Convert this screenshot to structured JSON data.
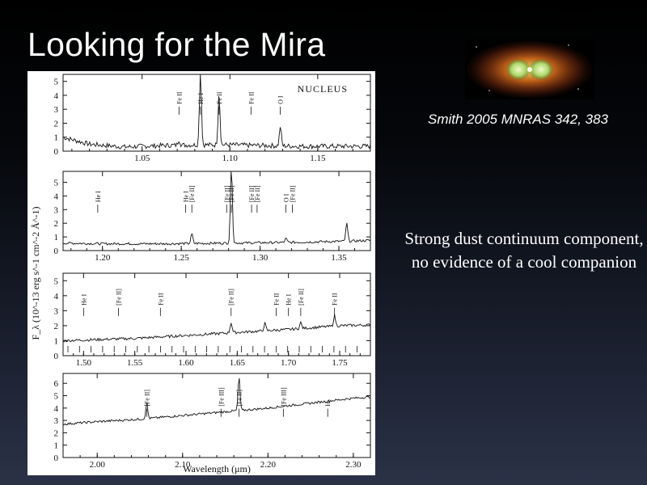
{
  "slide": {
    "title": "Looking for the Mira",
    "citation": "Smith 2005 MNRAS 342, 383",
    "note": "Strong dust continuum component, no evidence of a cool companion",
    "text_color": "#ffffff"
  },
  "chart_data": {
    "type": "line",
    "ylabel": "F_λ (10^-13 erg s^-1 cm^-2 Å^-1)",
    "xlabel": "Wavelength (μm)",
    "panels": [
      {
        "xlim": [
          1.005,
          1.18
        ],
        "ylim": [
          0,
          5.5
        ],
        "xticks": [
          "1.05",
          "1.10",
          "1.15"
        ],
        "xtick_values": [
          1.05,
          1.1,
          1.15
        ],
        "yticks": [
          "0",
          "1",
          "2",
          "3",
          "4",
          "5"
        ],
        "label": "NUCLEUS",
        "series": [
          {
            "x": [
              1.005,
              1.02,
              1.04,
              1.06,
              1.08,
              1.1,
              1.12,
              1.14,
              1.16,
              1.18
            ],
            "y": [
              1.0,
              0.5,
              0.3,
              0.4,
              0.45,
              0.45,
              0.4,
              0.35,
              0.35,
              0.35
            ]
          }
        ],
        "emission": [
          [
            1.071,
            0.4
          ],
          [
            1.0832,
            5.5
          ],
          [
            1.0938,
            3.7
          ],
          [
            1.1287,
            1.4
          ]
        ],
        "line_labels": [
          "Fe II",
          "He I",
          "Fe II",
          "Fe II",
          "O I"
        ],
        "line_positions": [
          1.071,
          1.0832,
          1.0938,
          1.112,
          1.1287
        ]
      },
      {
        "xlim": [
          1.175,
          1.37
        ],
        "ylim": [
          0,
          5.8
        ],
        "xticks": [
          "1.20",
          "1.25",
          "1.30",
          "1.35"
        ],
        "xtick_values": [
          1.2,
          1.25,
          1.3,
          1.35
        ],
        "yticks": [
          "0",
          "1",
          "2",
          "3",
          "4",
          "5"
        ],
        "series": [
          {
            "x": [
              1.175,
              1.2,
              1.24,
              1.28,
              1.32,
              1.36,
              1.37
            ],
            "y": [
              0.55,
              0.5,
              0.5,
              0.55,
              0.6,
              0.7,
              0.75
            ]
          }
        ],
        "emission": [
          [
            1.2567,
            0.7
          ],
          [
            1.2818,
            5.8
          ],
          [
            1.3164,
            0.3
          ],
          [
            1.355,
            1.3
          ]
        ],
        "line_labels": [
          "He I",
          "He I",
          "[Fe II]",
          "[Fe II]",
          "[Fe II]",
          "[Fe II]",
          "[Fe II]",
          "O I",
          "[Fe II]"
        ],
        "line_positions": [
          1.197,
          1.2527,
          1.2567,
          1.2788,
          1.2818,
          1.2946,
          1.2981,
          1.3164,
          1.3205
        ]
      },
      {
        "xlim": [
          1.48,
          1.78
        ],
        "ylim": [
          0,
          5.5
        ],
        "xticks": [
          "1.50",
          "1.55",
          "1.60",
          "1.65",
          "1.70",
          "1.75"
        ],
        "xtick_values": [
          1.5,
          1.55,
          1.6,
          1.65,
          1.7,
          1.75
        ],
        "yticks": [
          "0",
          "1",
          "2",
          "3",
          "4",
          "5"
        ],
        "series": [
          {
            "x": [
              1.48,
              1.55,
              1.6,
              1.65,
              1.7,
              1.75,
              1.78
            ],
            "y": [
              1.0,
              1.15,
              1.35,
              1.55,
              1.75,
              2.0,
              2.05
            ]
          }
        ],
        "emission": [
          [
            1.644,
            0.7
          ],
          [
            1.677,
            0.5
          ],
          [
            1.712,
            0.4
          ],
          [
            1.745,
            0.7
          ]
        ],
        "line_labels": [
          "He I",
          "[Fe II]",
          "Fe II",
          "[Fe II]",
          "Fe II",
          "He I",
          "[Fe II]",
          "Fe II"
        ],
        "line_positions": [
          1.5,
          1.534,
          1.575,
          1.644,
          1.688,
          1.7,
          1.712,
          1.745
        ]
      },
      {
        "xlim": [
          1.96,
          2.32
        ],
        "ylim": [
          0,
          6.8
        ],
        "xticks": [
          "2.00",
          "2.10",
          "2.20",
          "2.30"
        ],
        "xtick_values": [
          2.0,
          2.1,
          2.2,
          2.3
        ],
        "yticks": [
          "0",
          "1",
          "2",
          "3",
          "4",
          "5",
          "6"
        ],
        "series": [
          {
            "x": [
              1.96,
              2.0,
              2.05,
              2.1,
              2.15,
              2.2,
              2.25,
              2.3,
              2.32
            ],
            "y": [
              2.7,
              2.9,
              3.1,
              3.4,
              3.7,
              4.0,
              4.4,
              4.8,
              4.9
            ]
          }
        ],
        "emission": [
          [
            2.058,
            1.3
          ],
          [
            2.1661,
            2.7
          ]
        ],
        "line_labels": [
          "[Fe II]",
          "[Fe III]",
          "[Fe II]",
          "[Fe III]",
          "H₂"
        ],
        "line_positions": [
          2.058,
          2.145,
          2.166,
          2.218,
          2.27
        ]
      }
    ]
  }
}
